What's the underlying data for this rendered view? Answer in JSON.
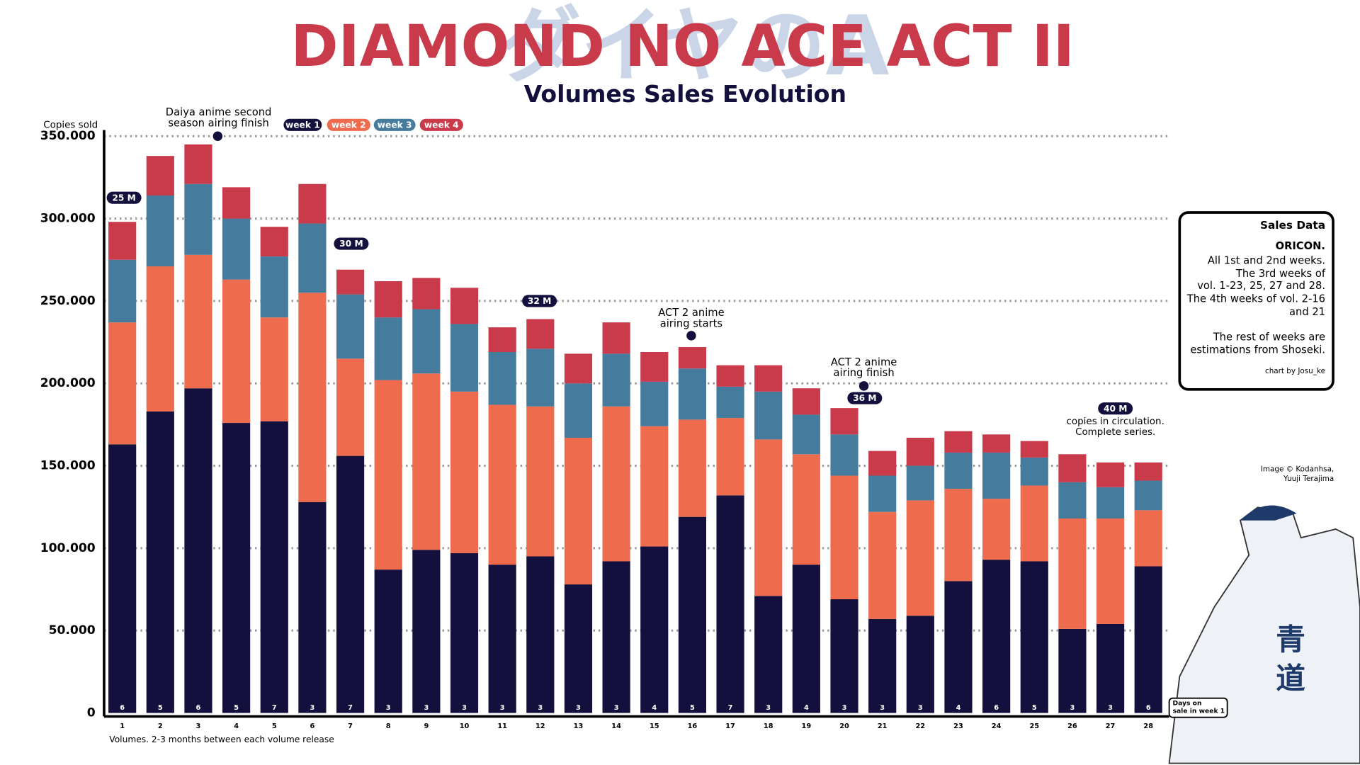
{
  "chart_data": {
    "type": "stacked_bar",
    "title": "DIAMOND NO ACE ACT II",
    "subtitle": "Volumes Sales Evolution",
    "background_logo": "ダイヤのA",
    "y_label": "Copies sold",
    "x_label": "Volumes. 2-3 months between each volume release",
    "categories": [
      "1",
      "2",
      "3",
      "4",
      "5",
      "6",
      "7",
      "8",
      "9",
      "10",
      "11",
      "12",
      "13",
      "14",
      "15",
      "16",
      "17",
      "18",
      "19",
      "20",
      "21",
      "22",
      "23",
      "24",
      "25",
      "26",
      "27",
      "28"
    ],
    "series": [
      {
        "name": "week 1",
        "color": "#13103d",
        "values": [
          163000,
          183000,
          197000,
          176000,
          177000,
          128000,
          156000,
          87000,
          99000,
          97000,
          90000,
          95000,
          78000,
          92000,
          101000,
          119000,
          132000,
          71000,
          90000,
          69000,
          57000,
          59000,
          80000,
          93000,
          92000,
          51000,
          54000,
          89000
        ]
      },
      {
        "name": "week 2",
        "color": "#ee6b4d",
        "values": [
          74000,
          88000,
          81000,
          87000,
          63000,
          127000,
          59000,
          115000,
          107000,
          98000,
          97000,
          91000,
          89000,
          94000,
          73000,
          59000,
          47000,
          95000,
          67000,
          75000,
          65000,
          70000,
          56000,
          37000,
          46000,
          67000,
          64000,
          34000
        ]
      },
      {
        "name": "week 3",
        "color": "#457b9d",
        "values": [
          38000,
          43000,
          43000,
          37000,
          37000,
          42000,
          39000,
          38000,
          39000,
          41000,
          32000,
          35000,
          33000,
          32000,
          27000,
          31000,
          19000,
          29000,
          24000,
          25000,
          22000,
          21000,
          22000,
          28000,
          17000,
          22000,
          19000,
          18000
        ]
      },
      {
        "name": "week 4",
        "color": "#c93a4b",
        "values": [
          23000,
          24000,
          24000,
          19000,
          18000,
          24000,
          15000,
          22000,
          19000,
          22000,
          15000,
          18000,
          18000,
          19000,
          18000,
          13000,
          13000,
          16000,
          16000,
          16000,
          15000,
          17000,
          13000,
          11000,
          10000,
          17000,
          15000,
          11000
        ]
      }
    ],
    "days_on_sale": [
      6,
      5,
      6,
      5,
      7,
      3,
      7,
      3,
      3,
      3,
      3,
      3,
      3,
      3,
      4,
      5,
      7,
      3,
      4,
      3,
      3,
      3,
      4,
      6,
      5,
      3,
      3,
      6
    ],
    "days_label": [
      "Days on",
      "sale in week 1"
    ],
    "ylim": [
      0,
      350000
    ],
    "yticks": [
      0,
      {
        "value": 50000,
        "label": "50.000"
      },
      {
        "value": 100000,
        "label": "100.000"
      },
      {
        "value": 150000,
        "label": "150.000"
      },
      {
        "value": 200000,
        "label": "200.000"
      },
      {
        "value": 250000,
        "label": "250.000"
      },
      {
        "value": 300000,
        "label": "300.000"
      },
      {
        "value": 350000,
        "label": "350.000"
      }
    ],
    "grid": true,
    "annotations": [
      {
        "text": [
          "Daiya anime second",
          "season airing finish"
        ]
      },
      {
        "text": [
          "ACT 2 anime",
          "airing starts"
        ]
      },
      {
        "text": [
          "ACT 2 anime",
          "airing finish"
        ]
      }
    ],
    "badges": [
      "25 M",
      "30 M",
      "32 M",
      "36 M",
      "40 M"
    ],
    "badge_note": [
      "copies in circulation.",
      "Complete series."
    ],
    "sales_box": {
      "title": "Sales Data",
      "source": "ORICON.",
      "lines": [
        "All 1st and 2nd weeks.",
        "The 3rd weeks of",
        "vol.  1-23, 25, 27 and 28.",
        "The 4th weeks of vol. 2-16",
        "and 21",
        "The rest of weeks are",
        "estimations from Shoseki."
      ],
      "credit": "chart by Josu_ke"
    },
    "image_credit": [
      "Image © Kodanhsa,",
      "Yuuji Terajima"
    ]
  }
}
